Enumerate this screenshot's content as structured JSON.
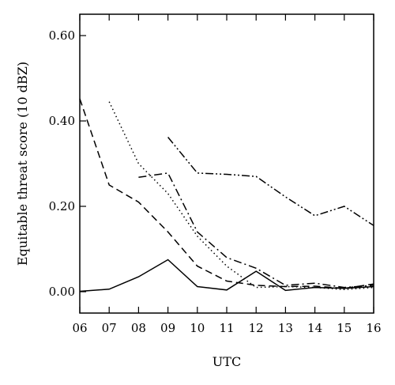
{
  "chart_data": {
    "type": "line",
    "title": "",
    "xlabel": "UTC",
    "ylabel": "Equitable threat score (10 dBZ)",
    "x_ticks": [
      "06",
      "07",
      "08",
      "09",
      "10",
      "11",
      "12",
      "13",
      "14",
      "15",
      "16"
    ],
    "y_ticks": [
      "0.00",
      "0.20",
      "0.40",
      "0.60"
    ],
    "xlim": [
      6,
      16
    ],
    "ylim": [
      -0.05,
      0.65
    ],
    "grid": false,
    "legend": "none",
    "series": [
      {
        "style": "solid",
        "x": [
          6,
          7,
          8,
          9,
          10,
          11,
          12,
          13,
          14,
          15,
          16
        ],
        "y": [
          0.001,
          0.006,
          0.035,
          0.075,
          0.012,
          0.004,
          0.048,
          0.003,
          0.01,
          0.008,
          0.012
        ]
      },
      {
        "style": "dashed",
        "x": [
          6,
          7,
          8,
          9,
          10,
          11,
          12,
          13,
          14,
          15,
          16
        ],
        "y": [
          0.452,
          0.25,
          0.21,
          0.14,
          0.06,
          0.025,
          0.015,
          0.012,
          0.013,
          0.008,
          0.018
        ]
      },
      {
        "style": "dotted",
        "x": [
          7,
          8,
          9,
          10,
          11,
          12,
          13,
          14,
          15,
          16
        ],
        "y": [
          0.445,
          0.3,
          0.23,
          0.13,
          0.06,
          0.01,
          0.012,
          0.01,
          0.005,
          0.01
        ]
      },
      {
        "style": "dash-dot",
        "x": [
          8,
          9,
          10,
          11,
          12,
          13,
          14,
          15,
          16
        ],
        "y": [
          0.268,
          0.278,
          0.14,
          0.08,
          0.055,
          0.015,
          0.02,
          0.01,
          0.015
        ]
      },
      {
        "style": "dash-dot-dot",
        "x": [
          9,
          10,
          11,
          12,
          13,
          14,
          15,
          16
        ],
        "y": [
          0.362,
          0.278,
          0.275,
          0.27,
          0.222,
          0.178,
          0.2,
          0.155
        ]
      }
    ]
  }
}
